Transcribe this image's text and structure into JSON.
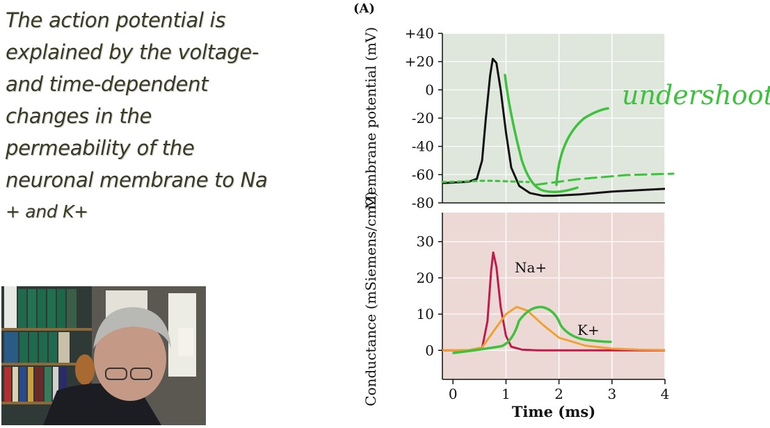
{
  "slide": {
    "lines": [
      "The action potential is",
      "explained by the voltage-",
      "and time-dependent",
      "changes in the",
      "permeability of the",
      "neuronal membrane to Na",
      "+ and K+"
    ]
  },
  "annotation": {
    "handwritten": "undershoot",
    "ink_color": "#3cc23c"
  },
  "figure": {
    "panel_label": "(A)",
    "x_axis_label": "Time (ms)",
    "x_ticks": [
      "0",
      "1",
      "2",
      "3",
      "4"
    ]
  },
  "chart_data": [
    {
      "type": "line",
      "ylabel": "Membrane potential (mV)",
      "ylim": [
        -80,
        40
      ],
      "xlim": [
        -0.2,
        4
      ],
      "y_ticks": [
        "+40",
        "+20",
        "0",
        "-20",
        "-40",
        "-60",
        "-80"
      ],
      "grid": true,
      "series": [
        {
          "color": "#111111",
          "x": [
            -0.2,
            0.3,
            0.45,
            0.55,
            0.62,
            0.7,
            0.75,
            0.82,
            0.9,
            1.0,
            1.1,
            1.25,
            1.45,
            1.7,
            1.9,
            2.4,
            3.0,
            3.5,
            4.0
          ],
          "y": [
            -66,
            -65,
            -63,
            -50,
            -20,
            10,
            22,
            19,
            0,
            -30,
            -55,
            -68,
            -73,
            -75,
            -75,
            -74,
            -72,
            -71,
            -70
          ]
        }
      ]
    },
    {
      "type": "line",
      "ylabel": "Conductance (mSiemens/cm2)",
      "ylim": [
        -8,
        38
      ],
      "xlim": [
        -0.2,
        4
      ],
      "y_ticks": [
        "30",
        "20",
        "10",
        "0"
      ],
      "grid": true,
      "series": [
        {
          "name": "Na+",
          "color": "#c01a4a",
          "x": [
            -0.2,
            0.4,
            0.55,
            0.65,
            0.72,
            0.76,
            0.82,
            0.9,
            1.0,
            1.1,
            1.3,
            1.6,
            4.0
          ],
          "y": [
            0,
            0,
            0.6,
            8,
            22,
            27,
            23,
            12,
            4,
            1,
            0.2,
            0,
            0
          ]
        },
        {
          "name": "K+",
          "color": "#f0a030",
          "x": [
            -0.2,
            0.3,
            0.55,
            0.8,
            1.0,
            1.2,
            1.4,
            1.7,
            2.0,
            2.5,
            3.0,
            3.5,
            4.0
          ],
          "y": [
            0,
            0.1,
            0.8,
            6,
            10,
            12,
            11,
            7,
            3.5,
            1.3,
            0.5,
            0.2,
            0.1
          ]
        }
      ]
    }
  ]
}
